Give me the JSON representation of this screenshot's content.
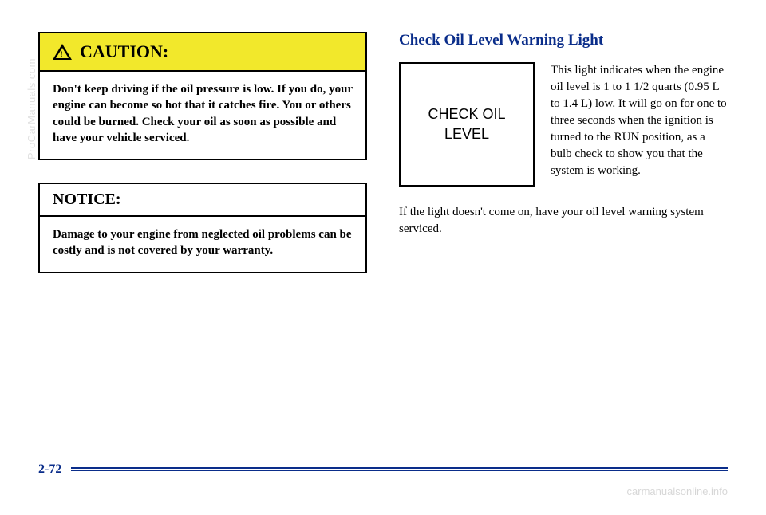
{
  "caution": {
    "title": "CAUTION:",
    "body": "Don't keep driving if the oil pressure is low. If you do, your engine can become so hot that it catches fire. You or others could be burned. Check your oil as soon as possible and have your vehicle serviced."
  },
  "notice": {
    "title": "NOTICE:",
    "body": "Damage to your engine from neglected oil problems can be costly and is not covered by your warranty."
  },
  "section": {
    "title": "Check Oil Level Warning Light",
    "indicator_line1": "CHECK OIL",
    "indicator_line2": "LEVEL",
    "description": "This light indicates when the engine oil level is 1 to 1 1/2 quarts (0.95 L to 1.4 L) low. It will go on for one to three seconds when the ignition is turned to the RUN position, as a bulb check to show you that the system is working.",
    "follow": "If the light doesn't come on, have your oil level warning system serviced."
  },
  "footer": {
    "page": "2-72"
  },
  "watermarks": {
    "left": "ProCarManuals.com",
    "bottom_right": "carmanualsonline.info"
  }
}
